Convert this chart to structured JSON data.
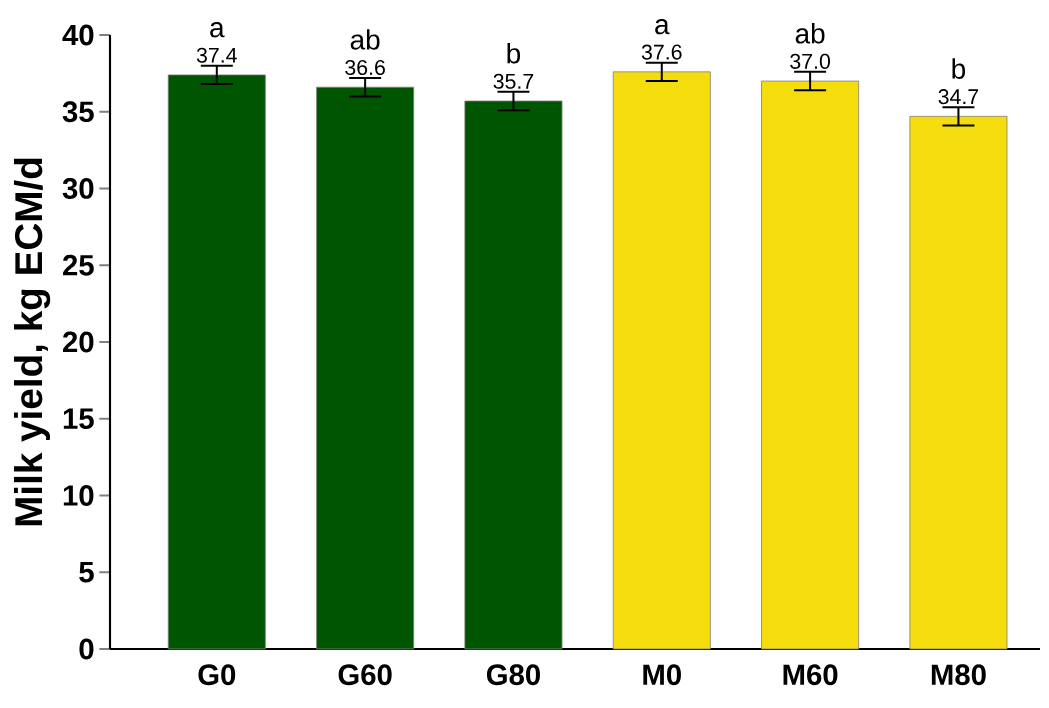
{
  "chart_data": {
    "type": "bar",
    "ylabel": "Milk yield, kg ECM/d",
    "categories": [
      "G0",
      "G60",
      "G80",
      "M0",
      "M60",
      "M80"
    ],
    "values": [
      37.4,
      36.6,
      35.7,
      37.6,
      37.0,
      34.7
    ],
    "errors": [
      0.6,
      0.6,
      0.6,
      0.6,
      0.6,
      0.6
    ],
    "colors": [
      "#005500",
      "#005500",
      "#005500",
      "#f5dc0c",
      "#f5dc0c",
      "#f5dc0c"
    ],
    "value_labels": [
      "37.4",
      "36.6",
      "35.7",
      "37.6",
      "37.0",
      "34.7"
    ],
    "annotations": [
      "a",
      "ab",
      "b",
      "a",
      "ab",
      "b"
    ],
    "ylim": [
      0,
      40
    ],
    "yticks": [
      0,
      5,
      10,
      15,
      20,
      25,
      30,
      35,
      40
    ],
    "grid": false
  }
}
